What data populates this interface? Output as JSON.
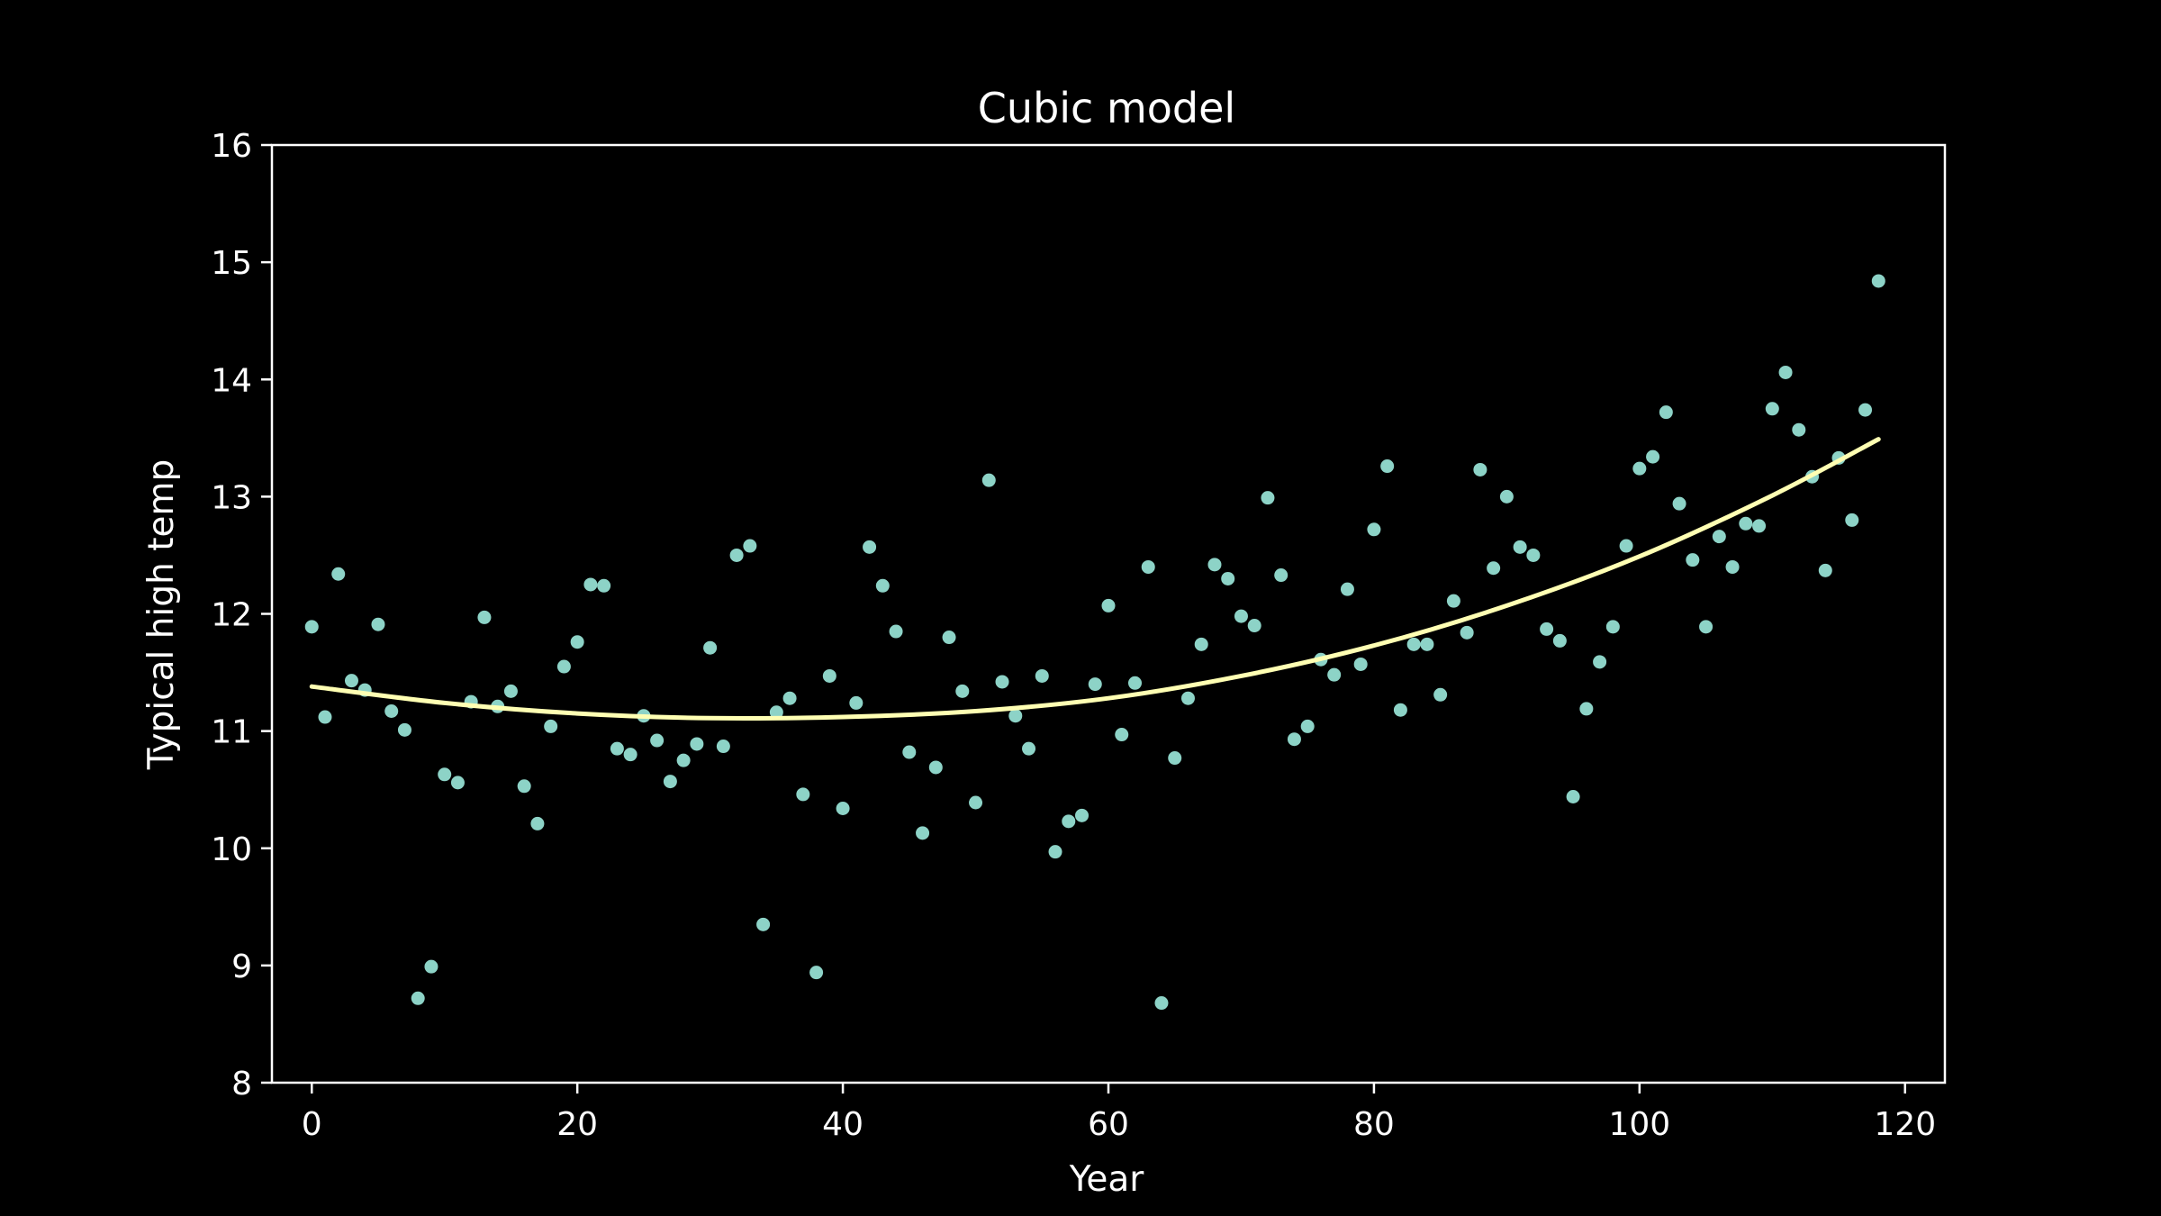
{
  "chart_data": {
    "type": "scatter",
    "title": "Cubic model",
    "xlabel": "Year",
    "ylabel": "Typical high temp",
    "xlim": [
      -3,
      123
    ],
    "ylim": [
      8,
      16
    ],
    "xticks": [
      0,
      20,
      40,
      60,
      80,
      100,
      120
    ],
    "yticks": [
      8,
      9,
      10,
      11,
      12,
      13,
      14,
      15,
      16
    ],
    "grid": false,
    "colors": {
      "background": "#000000",
      "axes": "#ffffff",
      "points": "#8dd3c7",
      "fit": "#ffffb3"
    },
    "series": [
      {
        "kind": "points",
        "x": [
          0,
          1,
          2,
          3,
          4,
          5,
          6,
          7,
          8,
          9,
          10,
          11,
          12,
          13,
          14,
          15,
          16,
          17,
          18,
          19,
          20,
          21,
          22,
          23,
          24,
          25,
          26,
          27,
          28,
          29,
          30,
          31,
          32,
          33,
          34,
          35,
          36,
          37,
          38,
          39,
          40,
          41,
          42,
          43,
          44,
          45,
          46,
          47,
          48,
          49,
          50,
          51,
          52,
          53,
          54,
          55,
          56,
          57,
          58,
          59,
          60,
          61,
          62,
          63,
          64,
          65,
          66,
          67,
          68,
          69,
          70,
          71,
          72,
          73,
          74,
          75,
          76,
          77,
          78,
          79,
          80,
          81,
          82,
          83,
          84,
          85,
          86,
          87,
          88,
          89,
          90,
          91,
          92,
          93,
          94,
          95,
          96,
          97,
          98,
          99,
          100,
          101,
          102,
          103,
          104,
          105,
          106,
          107,
          108,
          109,
          110,
          111,
          112,
          113,
          114,
          115,
          116,
          117,
          118
        ],
        "y": [
          11.89,
          11.12,
          12.34,
          11.43,
          11.35,
          11.91,
          11.17,
          11.01,
          8.72,
          8.99,
          10.63,
          10.56,
          11.25,
          11.97,
          11.21,
          11.34,
          10.53,
          10.21,
          11.04,
          11.55,
          11.76,
          12.25,
          12.24,
          10.85,
          10.8,
          11.13,
          10.92,
          10.57,
          10.75,
          10.89,
          11.71,
          10.87,
          12.5,
          12.58,
          9.35,
          11.16,
          11.28,
          10.46,
          8.94,
          11.47,
          10.34,
          11.24,
          12.57,
          12.24,
          11.85,
          10.82,
          10.13,
          10.69,
          11.8,
          11.34,
          10.39,
          13.14,
          11.42,
          11.13,
          10.85,
          11.47,
          9.97,
          10.23,
          10.28,
          11.4,
          12.07,
          10.97,
          11.41,
          12.4,
          8.68,
          10.77,
          11.28,
          11.74,
          12.42,
          12.3,
          11.98,
          11.9,
          12.99,
          12.33,
          10.93,
          11.04,
          11.61,
          11.48,
          12.21,
          11.57,
          12.72,
          13.26,
          11.18,
          11.74,
          11.74,
          11.31,
          12.11,
          11.84,
          13.23,
          12.39,
          13.0,
          12.57,
          12.5,
          11.87,
          11.77,
          10.44,
          11.19,
          11.59,
          11.89,
          12.58,
          13.24,
          13.34,
          13.72,
          12.94,
          12.46,
          11.89,
          12.66,
          12.4,
          12.77,
          12.75,
          13.75,
          14.06,
          13.57,
          13.17,
          12.37,
          13.33,
          12.8,
          13.74,
          14.84
        ]
      },
      {
        "kind": "line",
        "x": [
          0,
          10,
          20,
          30,
          40,
          50,
          60,
          70,
          80,
          90,
          100,
          110,
          118
        ],
        "y": [
          11.38,
          11.24,
          11.15,
          11.11,
          11.12,
          11.17,
          11.28,
          11.47,
          11.73,
          12.07,
          12.49,
          13.01,
          13.49
        ]
      }
    ]
  }
}
